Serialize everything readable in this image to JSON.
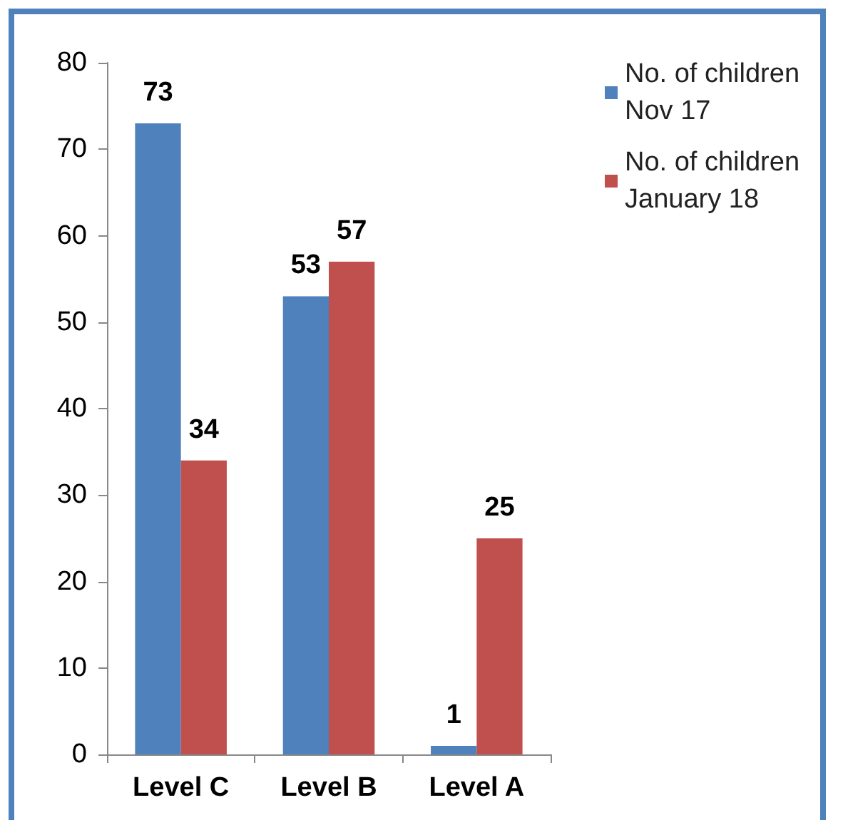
{
  "chart_data": {
    "type": "bar",
    "categories": [
      "Level C",
      "Level B",
      "Level A"
    ],
    "series": [
      {
        "name": "No. of children Nov 17",
        "color": "#4f81bd",
        "values": [
          73,
          53,
          1
        ]
      },
      {
        "name": "No. of children January 18",
        "color": "#c0504d",
        "values": [
          34,
          57,
          25
        ]
      }
    ],
    "ylim": [
      0,
      80
    ],
    "yticks": [
      0,
      10,
      20,
      30,
      40,
      50,
      60,
      70,
      80
    ],
    "grid": false,
    "legend": "top right",
    "data_labels": true
  }
}
